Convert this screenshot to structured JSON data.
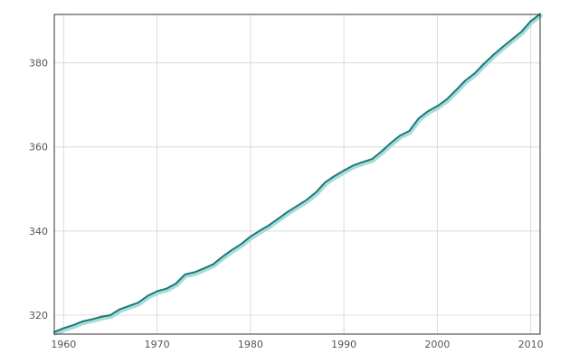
{
  "chart_data": {
    "type": "line",
    "title": "",
    "xlabel": "",
    "ylabel": "",
    "xlim": [
      1959,
      2011
    ],
    "ylim": [
      315.5,
      391.5
    ],
    "x_ticks": [
      1960,
      1970,
      1980,
      1990,
      2000,
      2010
    ],
    "y_ticks": [
      320,
      340,
      360,
      380
    ],
    "x_tick_labels": [
      "1960",
      "1970",
      "1980",
      "1990",
      "2000",
      "2010"
    ],
    "y_tick_labels": [
      "320",
      "340",
      "360",
      "380"
    ],
    "grid": true,
    "legend": "none",
    "colors": {
      "line": "#1d7a75",
      "shadow": "#a8dcd9",
      "grid": "#dcdcdc",
      "frame": "#333333",
      "tick_text": "#555555"
    },
    "series": [
      {
        "x": [
          1959,
          1960,
          1961,
          1962,
          1963,
          1964,
          1965,
          1966,
          1967,
          1968,
          1969,
          1970,
          1971,
          1972,
          1973,
          1974,
          1975,
          1976,
          1977,
          1978,
          1979,
          1980,
          1981,
          1982,
          1983,
          1984,
          1985,
          1986,
          1987,
          1988,
          1989,
          1990,
          1991,
          1992,
          1993,
          1994,
          1995,
          1996,
          1997,
          1998,
          1999,
          2000,
          2001,
          2002,
          2003,
          2004,
          2005,
          2006,
          2007,
          2008,
          2009,
          2010,
          2011
        ],
        "values": [
          316.0,
          316.9,
          317.6,
          318.5,
          319.0,
          319.6,
          320.0,
          321.4,
          322.2,
          323.0,
          324.6,
          325.7,
          326.3,
          327.5,
          329.7,
          330.2,
          331.1,
          332.1,
          333.9,
          335.5,
          336.9,
          338.7,
          340.1,
          341.4,
          343.0,
          344.6,
          346.0,
          347.4,
          349.2,
          351.6,
          353.1,
          354.4,
          355.6,
          356.4,
          357.1,
          358.9,
          360.9,
          362.7,
          363.8,
          366.8,
          368.5,
          369.7,
          371.3,
          373.5,
          375.8,
          377.5,
          379.8,
          381.9,
          383.8,
          385.6,
          387.4,
          389.9,
          391.6
        ]
      }
    ]
  }
}
